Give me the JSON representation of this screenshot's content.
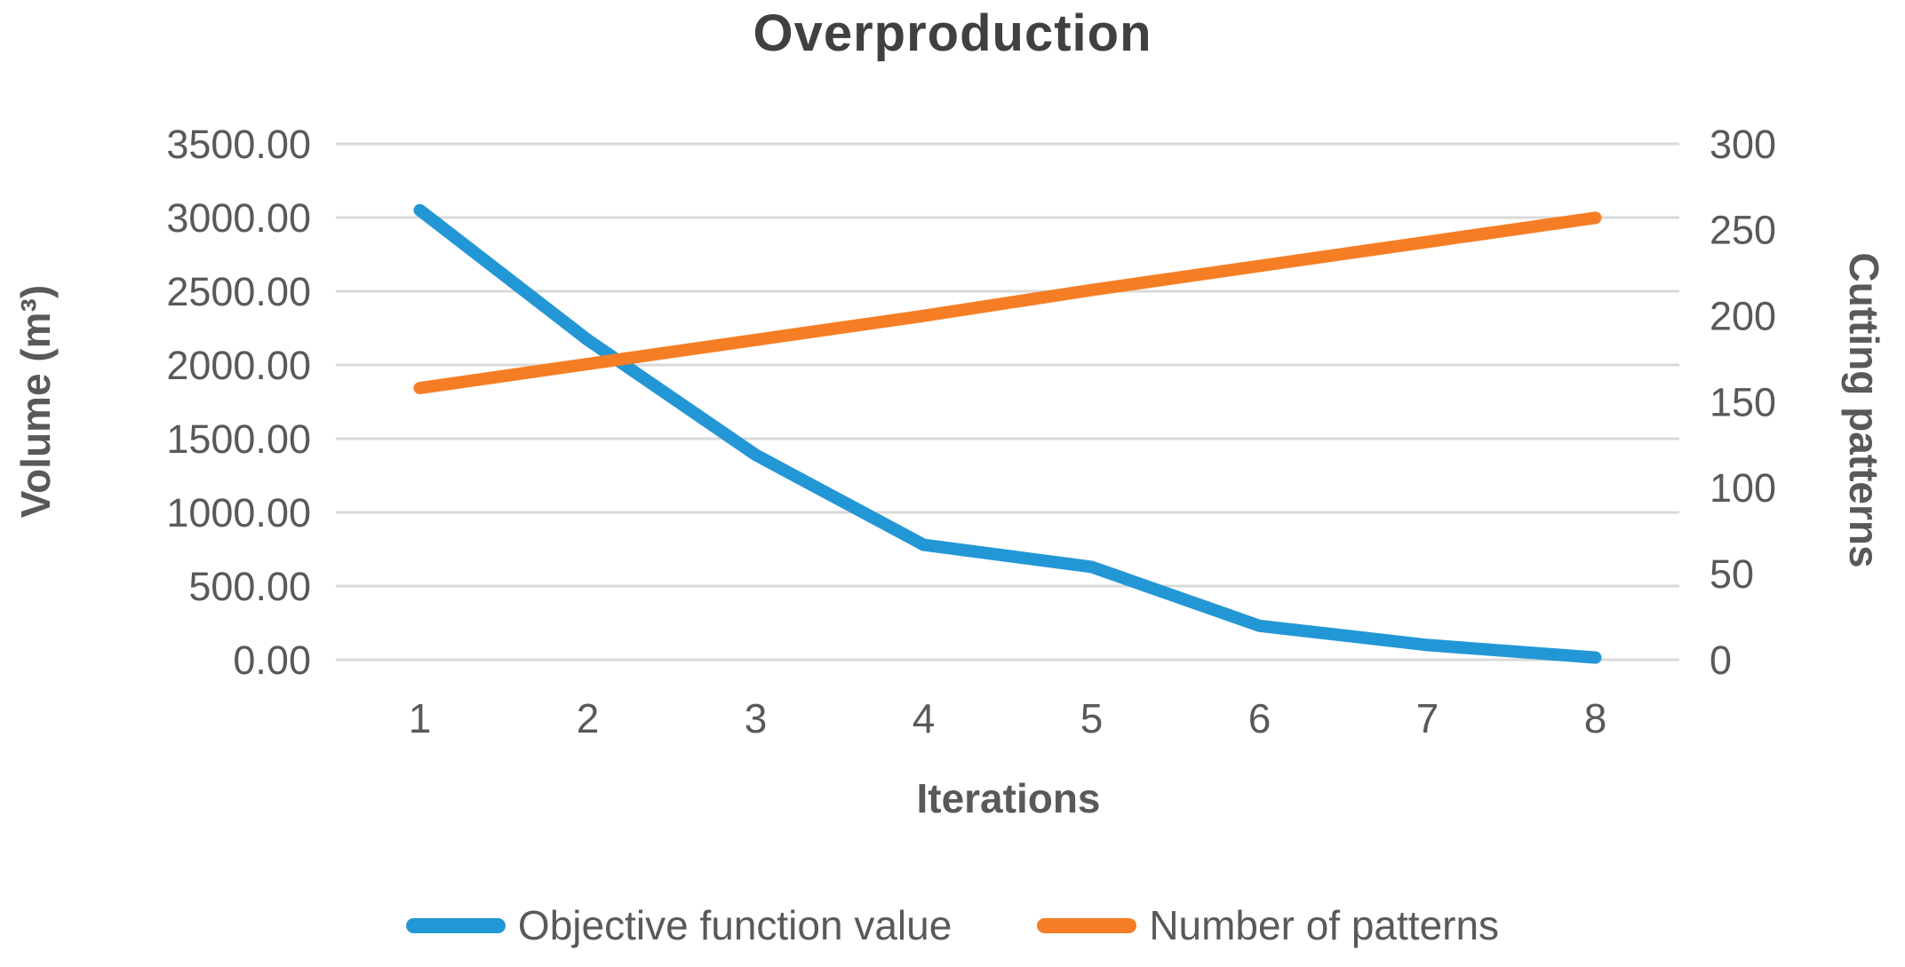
{
  "chart": {
    "title": "Overproduction"
  },
  "chart_data": {
    "type": "line",
    "title": "Overproduction",
    "categories": [
      "1",
      "2",
      "3",
      "4",
      "5",
      "6",
      "7",
      "8"
    ],
    "x_axis": {
      "title": "Iterations"
    },
    "left_axis": {
      "title": "Volume (m³)",
      "lim": [
        0,
        3500
      ],
      "tick_labels": [
        "3500.00",
        "3000.00",
        "2500.00",
        "2000.00",
        "1500.00",
        "1000.00",
        "500.00",
        "0.00"
      ]
    },
    "right_axis": {
      "title": "Cutting patterns",
      "lim": [
        0,
        300
      ],
      "tick_labels": [
        "300",
        "250",
        "200",
        "150",
        "100",
        "50",
        "0"
      ]
    },
    "series": [
      {
        "name": "Objective function value",
        "axis": "left",
        "color": "#2397D5",
        "values": [
          3050,
          2170,
          1390,
          780,
          630,
          230,
          100,
          15
        ]
      },
      {
        "name": "Number of patterns",
        "axis": "right",
        "color": "#F57E25",
        "values": [
          158,
          172,
          186,
          200,
          215,
          229,
          243,
          257
        ]
      }
    ],
    "grid": {
      "show": true,
      "color": "#D9D9D9"
    },
    "text_color": "#595959",
    "legend_position": "bottom"
  }
}
